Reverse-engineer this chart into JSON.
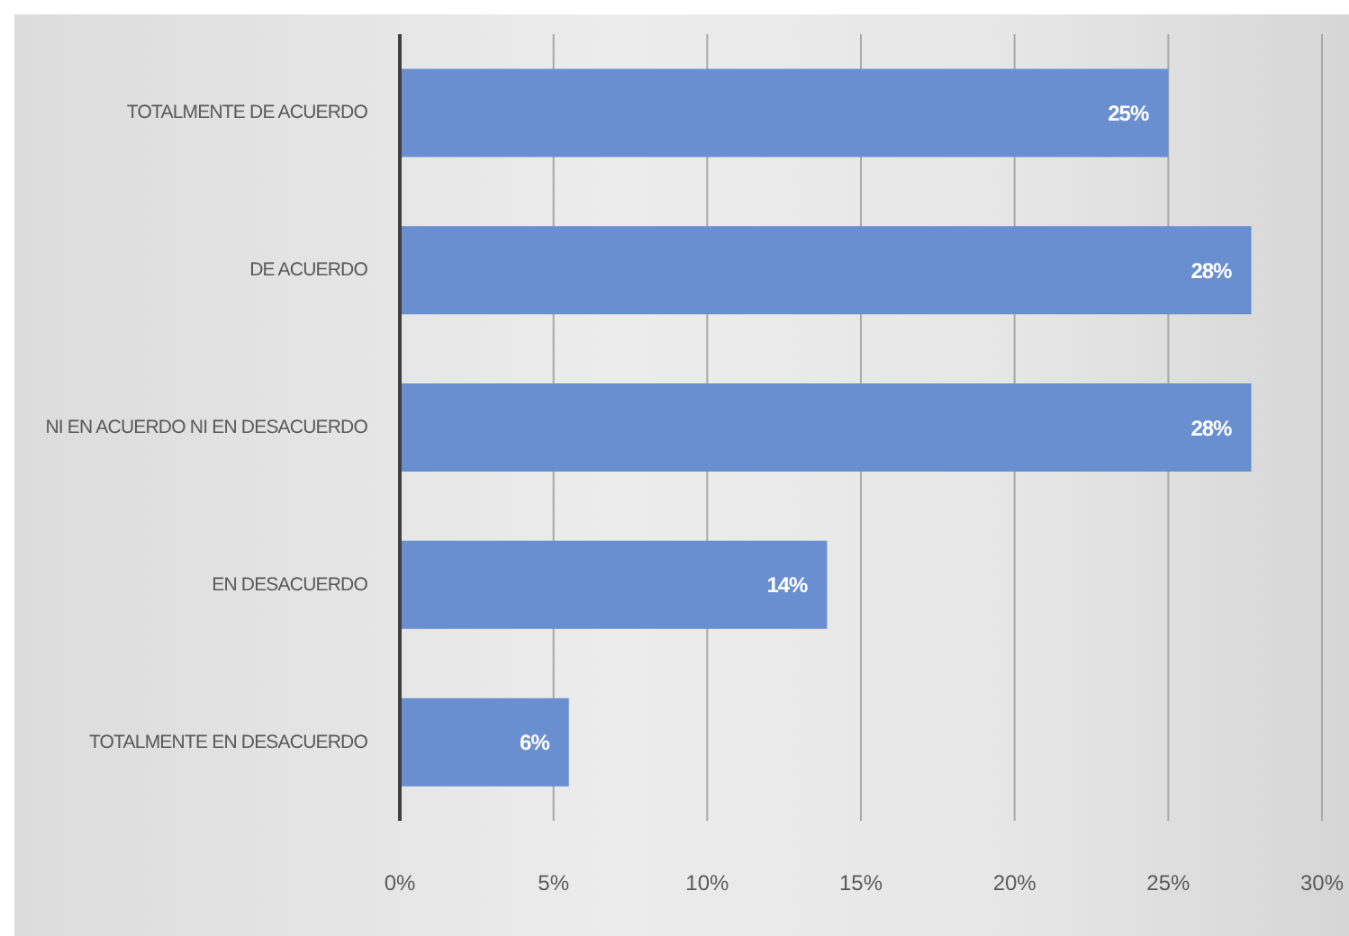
{
  "chart_data": {
    "type": "bar",
    "orientation": "horizontal",
    "categories": [
      "TOTALMENTE DE ACUERDO",
      "DE ACUERDO",
      "NI EN ACUERDO NI EN DESACUERDO",
      "EN DESACUERDO",
      "TOTALMENTE EN DESACUERDO"
    ],
    "values": [
      25,
      27.7,
      27.7,
      13.9,
      5.5
    ],
    "value_labels": [
      "25%",
      "28%",
      "28%",
      "14%",
      "6%"
    ],
    "color": "#6a8fd0",
    "xlim": [
      0,
      30
    ],
    "xticks": [
      {
        "value": 0,
        "label": "0%"
      },
      {
        "value": 5,
        "label": "5%"
      },
      {
        "value": 10,
        "label": "10%"
      },
      {
        "value": 15,
        "label": "15%"
      },
      {
        "value": 20,
        "label": "20%"
      },
      {
        "value": 25,
        "label": "25%"
      },
      {
        "value": 30,
        "label": "30%"
      }
    ],
    "grid": "x"
  }
}
